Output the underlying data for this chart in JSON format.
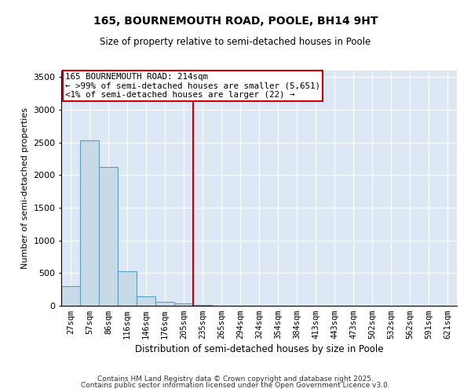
{
  "title1": "165, BOURNEMOUTH ROAD, POOLE, BH14 9HT",
  "title2": "Size of property relative to semi-detached houses in Poole",
  "xlabel": "Distribution of semi-detached houses by size in Poole",
  "ylabel": "Number of semi-detached properties",
  "categories": [
    "27sqm",
    "57sqm",
    "86sqm",
    "116sqm",
    "146sqm",
    "176sqm",
    "205sqm",
    "235sqm",
    "265sqm",
    "294sqm",
    "324sqm",
    "354sqm",
    "384sqm",
    "413sqm",
    "443sqm",
    "473sqm",
    "502sqm",
    "532sqm",
    "562sqm",
    "591sqm",
    "621sqm"
  ],
  "values": [
    300,
    2530,
    2120,
    530,
    150,
    65,
    40,
    10,
    0,
    0,
    0,
    0,
    0,
    0,
    0,
    0,
    0,
    0,
    0,
    0,
    0
  ],
  "bar_color": "#c8d9e8",
  "bar_edge_color": "#5b9fc0",
  "vline_x": 7.0,
  "vline_color": "#cc0000",
  "annotation_title": "165 BOURNEMOUTH ROAD: 214sqm",
  "annotation_line1": "← >99% of semi-detached houses are smaller (5,651)",
  "annotation_line2": "<1% of semi-detached houses are larger (22) →",
  "annotation_box_color": "#cc0000",
  "ylim": [
    0,
    3600
  ],
  "yticks": [
    0,
    500,
    1000,
    1500,
    2000,
    2500,
    3000,
    3500
  ],
  "background_color": "#dce8f5",
  "grid_color": "#ffffff",
  "footer1": "Contains HM Land Registry data © Crown copyright and database right 2025.",
  "footer2": "Contains public sector information licensed under the Open Government Licence v3.0."
}
